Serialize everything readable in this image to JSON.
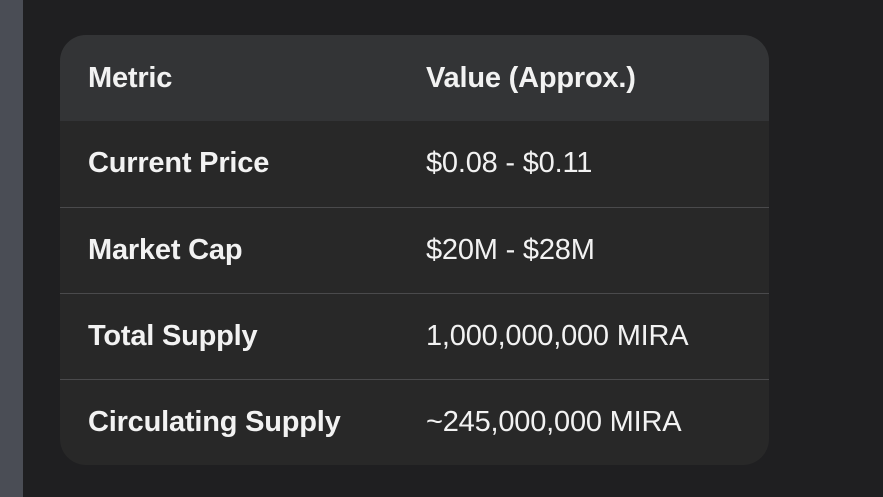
{
  "table": {
    "headers": [
      "Metric",
      "Value (Approx.)"
    ],
    "rows": [
      {
        "metric": "Current Price",
        "value": "$0.08 - $0.11"
      },
      {
        "metric": "Market Cap",
        "value": "$20M - $28M"
      },
      {
        "metric": "Total Supply",
        "value": "1,000,000,000 MIRA"
      },
      {
        "metric": "Circulating Supply",
        "value": "~245,000,000 MIRA"
      }
    ]
  }
}
